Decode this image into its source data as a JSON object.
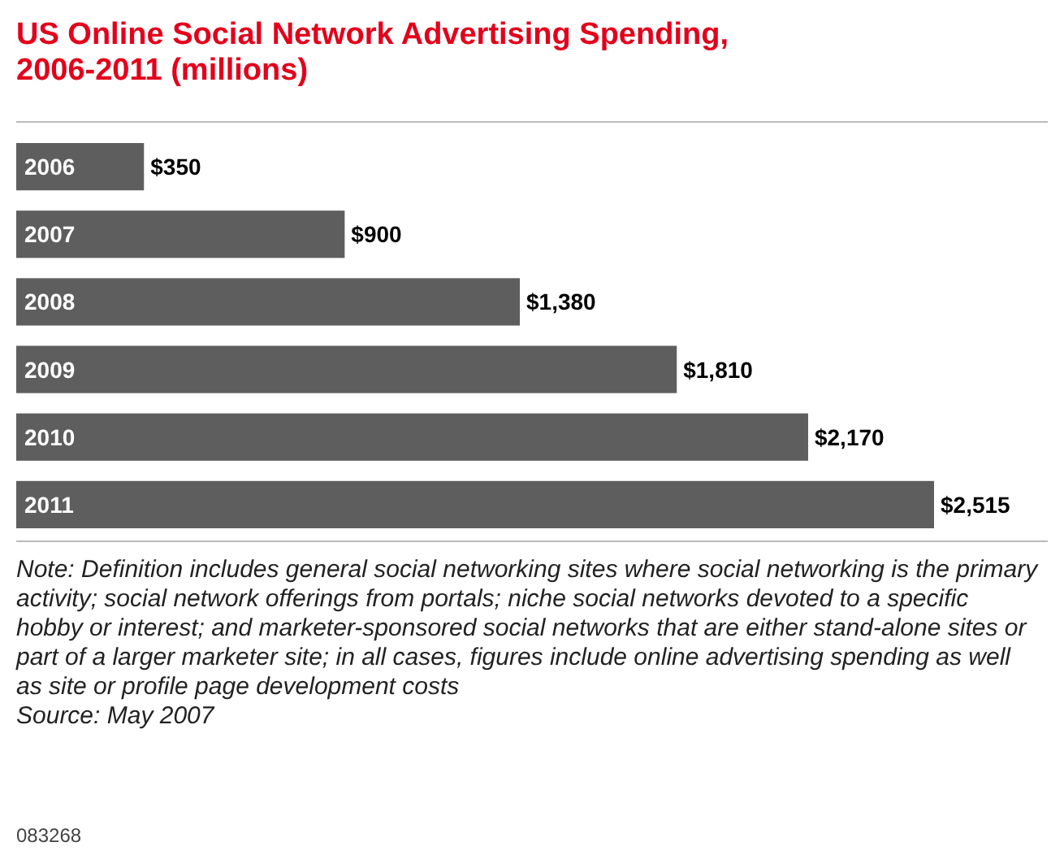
{
  "chart_data": {
    "type": "bar",
    "orientation": "horizontal",
    "title": "US Online Social Network Advertising Spending, 2006-2011 (millions)",
    "categories": [
      "2006",
      "2007",
      "2008",
      "2009",
      "2010",
      "2011"
    ],
    "values": [
      350,
      900,
      1380,
      1810,
      2170,
      2515
    ],
    "value_labels": [
      "$350",
      "$900",
      "$1,380",
      "$1,810",
      "$2,170",
      "$2,515"
    ],
    "color": "#5e5e5e",
    "annotations": [
      "Note: Definition includes general social networking sites where social networking is the primary activity; social network offerings from portals; niche social networks devoted to a specific hobby or interest; and marketer-sponsored social networks that are either stand-alone sites or part of a larger marketer site; in all cases, figures include online advertising spending as well as site or profile page development costs",
      "Source: May 2007",
      "083268"
    ]
  }
}
